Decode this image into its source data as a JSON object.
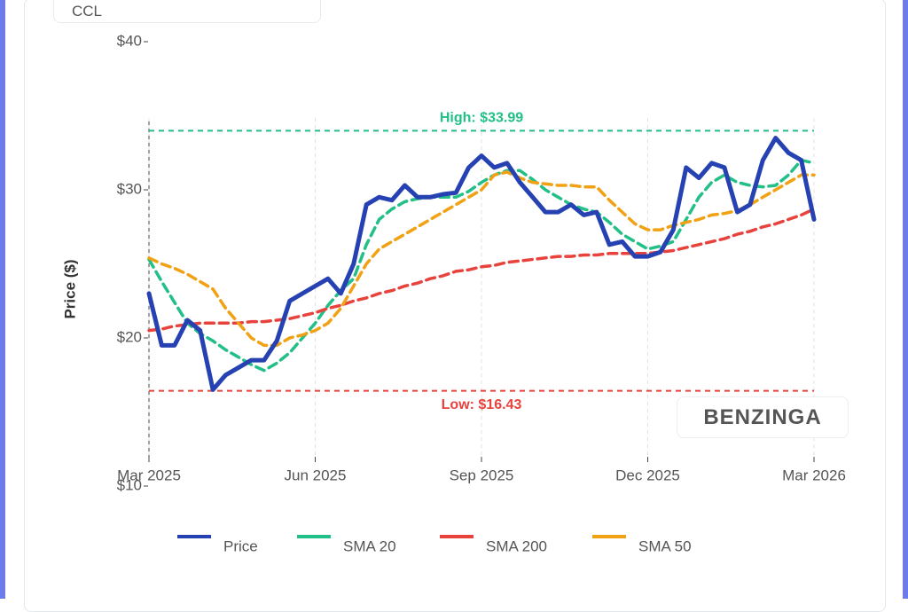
{
  "header": {
    "ticker": "CCL"
  },
  "watermark": "BENZINGA",
  "chart_data": {
    "type": "line",
    "y_label": "Price ($)",
    "categories": [
      "Mar 2025",
      null,
      null,
      null,
      null,
      null,
      null,
      null,
      null,
      null,
      null,
      null,
      null,
      "Jun 2025",
      null,
      null,
      null,
      null,
      null,
      null,
      null,
      null,
      null,
      null,
      null,
      null,
      "Sep 2025",
      null,
      null,
      null,
      null,
      null,
      null,
      null,
      null,
      null,
      null,
      null,
      null,
      "Dec 2025",
      null,
      null,
      null,
      null,
      null,
      null,
      null,
      null,
      null,
      null,
      null,
      null,
      "Mar 2026"
    ],
    "ylim": [
      10,
      40
    ],
    "yticks": [
      {
        "value": 10,
        "label": "$10"
      },
      {
        "value": 20,
        "label": "$20"
      },
      {
        "value": 30,
        "label": "$30"
      },
      {
        "value": 40,
        "label": "$40"
      }
    ],
    "grid": true,
    "series": [
      {
        "name": "Price",
        "color": "#2541b2",
        "dash": false,
        "values": [
          23.0,
          19.5,
          19.5,
          21.2,
          20.5,
          16.5,
          17.5,
          18.0,
          18.5,
          18.5,
          19.8,
          22.5,
          23.0,
          23.5,
          24.0,
          23.0,
          25.0,
          29.0,
          29.5,
          29.3,
          30.3,
          29.5,
          29.5,
          29.7,
          29.8,
          31.5,
          32.3,
          31.5,
          31.8,
          30.5,
          29.5,
          28.5,
          28.5,
          29.0,
          28.3,
          28.5,
          26.3,
          26.5,
          25.5,
          25.5,
          25.8,
          27.3,
          31.5,
          30.8,
          31.8,
          31.5,
          28.5,
          29.0,
          32.0,
          33.5,
          32.5,
          32.0,
          28.0
        ]
      },
      {
        "name": "SMA 20",
        "color": "#22bf86",
        "dash": true,
        "values": [
          25.3,
          23.8,
          22.4,
          21.0,
          20.3,
          19.8,
          19.2,
          18.7,
          18.2,
          17.8,
          18.3,
          19.0,
          20.0,
          21.0,
          22.2,
          23.2,
          24.0,
          26.3,
          28.0,
          28.7,
          29.2,
          29.4,
          29.5,
          29.5,
          29.5,
          29.9,
          30.5,
          31.0,
          31.3,
          31.3,
          30.7,
          30.0,
          29.5,
          29.0,
          28.7,
          28.5,
          27.8,
          27.0,
          26.5,
          26.0,
          26.2,
          26.5,
          28.0,
          29.5,
          30.5,
          31.0,
          30.5,
          30.3,
          30.2,
          30.3,
          31.0,
          32.0,
          31.8
        ]
      },
      {
        "name": "SMA 200",
        "color": "#e8423d",
        "dash": true,
        "values": [
          20.5,
          20.6,
          20.8,
          20.9,
          21.0,
          21.0,
          21.0,
          21.0,
          21.1,
          21.1,
          21.2,
          21.3,
          21.5,
          21.7,
          22.0,
          22.2,
          22.5,
          22.7,
          23.0,
          23.2,
          23.5,
          23.7,
          24.0,
          24.2,
          24.5,
          24.6,
          24.8,
          24.9,
          25.1,
          25.2,
          25.3,
          25.4,
          25.5,
          25.5,
          25.6,
          25.6,
          25.7,
          25.7,
          25.7,
          25.7,
          25.8,
          25.9,
          26.1,
          26.3,
          26.5,
          26.7,
          27.0,
          27.2,
          27.5,
          27.7,
          28.0,
          28.3,
          28.7
        ]
      },
      {
        "name": "SMA 50",
        "color": "#f0a114",
        "dash": true,
        "values": [
          25.4,
          25.0,
          24.7,
          24.3,
          23.8,
          23.3,
          22.0,
          21.0,
          20.0,
          19.5,
          19.5,
          20.0,
          20.2,
          20.5,
          21.0,
          22.0,
          23.5,
          25.0,
          26.0,
          26.5,
          27.0,
          27.5,
          28.0,
          28.5,
          29.0,
          29.5,
          30.0,
          31.0,
          31.2,
          30.8,
          30.5,
          30.4,
          30.3,
          30.3,
          30.2,
          30.2,
          29.3,
          28.5,
          27.7,
          27.3,
          27.3,
          27.6,
          27.8,
          28.0,
          28.3,
          28.4,
          28.6,
          29.0,
          29.5,
          30.0,
          30.5,
          31.0,
          31.0
        ]
      }
    ],
    "hlines": [
      {
        "value": 33.99,
        "label": "High: $33.99",
        "color": "#22bf86"
      },
      {
        "value": 16.43,
        "label": "Low: $16.43",
        "color": "#e8423d"
      }
    ]
  }
}
